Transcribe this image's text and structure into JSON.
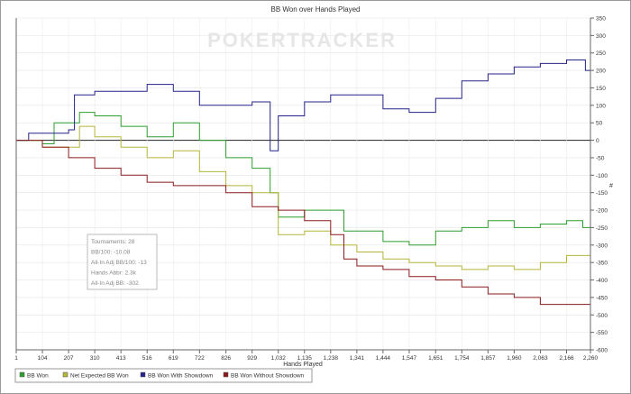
{
  "watermark": "POKERTRACKER",
  "chart_data": {
    "type": "line",
    "title": "BB Won over Hands Played",
    "xlabel": "Hands Played",
    "ylabel": "#",
    "xlim": [
      1,
      2260
    ],
    "ylim": [
      -600,
      350
    ],
    "xticks": [
      1,
      104,
      207,
      310,
      413,
      516,
      619,
      722,
      826,
      929,
      1032,
      1135,
      1238,
      1341,
      1444,
      1547,
      1651,
      1754,
      1857,
      1960,
      2063,
      2166,
      2260
    ],
    "xtick_labels": [
      "1",
      "104",
      "207",
      "310",
      "413",
      "516",
      "619",
      "722",
      "826",
      "929",
      "1,032",
      "1,135",
      "1,238",
      "1,341",
      "1,444",
      "1,547",
      "1,651",
      "1,754",
      "1,857",
      "1,960",
      "2,063",
      "2,166",
      "2,260"
    ],
    "yticks": [
      350,
      300,
      250,
      200,
      150,
      100,
      50,
      0,
      -50,
      -100,
      -150,
      -200,
      -250,
      -300,
      -350,
      -400,
      -450,
      -500,
      -550,
      -600
    ],
    "grid": true,
    "legend_placement": "bottom-left",
    "series": [
      {
        "name": "BB Won",
        "color": "#2e9e2e",
        "x": [
          1,
          104,
          150,
          207,
          250,
          310,
          413,
          516,
          619,
          722,
          826,
          929,
          1000,
          1032,
          1135,
          1238,
          1290,
          1341,
          1444,
          1547,
          1651,
          1754,
          1857,
          1960,
          2063,
          2166,
          2230,
          2260
        ],
        "y": [
          0,
          -10,
          50,
          50,
          80,
          70,
          40,
          10,
          50,
          0,
          -50,
          -80,
          -150,
          -220,
          -200,
          -200,
          -260,
          -260,
          -290,
          -300,
          -260,
          -250,
          -230,
          -250,
          -240,
          -230,
          -250,
          -230
        ]
      },
      {
        "name": "Net Expected BB Won",
        "color": "#b5b53a",
        "x": [
          1,
          104,
          207,
          250,
          310,
          413,
          516,
          619,
          722,
          826,
          929,
          1032,
          1135,
          1238,
          1341,
          1444,
          1547,
          1651,
          1754,
          1857,
          1960,
          2063,
          2166,
          2260
        ],
        "y": [
          0,
          -20,
          -20,
          40,
          10,
          -20,
          -50,
          -30,
          -90,
          -130,
          -150,
          -270,
          -260,
          -300,
          -320,
          -340,
          -350,
          -360,
          -370,
          -360,
          -370,
          -350,
          -330,
          -300
        ]
      },
      {
        "name": "BB Won With Showdown",
        "color": "#23238a",
        "x": [
          1,
          50,
          104,
          207,
          230,
          310,
          413,
          516,
          619,
          722,
          826,
          929,
          990,
          1000,
          1032,
          1135,
          1238,
          1341,
          1444,
          1547,
          1651,
          1754,
          1857,
          1960,
          2063,
          2166,
          2230,
          2240,
          2260
        ],
        "y": [
          0,
          20,
          20,
          30,
          130,
          140,
          140,
          160,
          140,
          100,
          100,
          110,
          110,
          -30,
          70,
          110,
          130,
          130,
          90,
          80,
          120,
          170,
          190,
          210,
          220,
          230,
          230,
          200,
          200
        ]
      },
      {
        "name": "BB Won Without Showdown",
        "color": "#8b1a1a",
        "x": [
          1,
          104,
          207,
          310,
          413,
          516,
          619,
          722,
          826,
          929,
          1032,
          1135,
          1238,
          1290,
          1341,
          1444,
          1547,
          1651,
          1754,
          1857,
          1960,
          2063,
          2166,
          2260
        ],
        "y": [
          0,
          -20,
          -50,
          -80,
          -100,
          -120,
          -130,
          -130,
          -150,
          -190,
          -200,
          -230,
          -270,
          -340,
          -360,
          -370,
          -390,
          -400,
          -420,
          -440,
          -450,
          -470,
          -470,
          -440
        ]
      }
    ],
    "stats": [
      "Tournaments: 28",
      "BB/100: -10.08",
      "All-In Adj BB/100: -13",
      "Hands Abbr: 2.3k",
      "All-In Adj BB: -302"
    ]
  }
}
